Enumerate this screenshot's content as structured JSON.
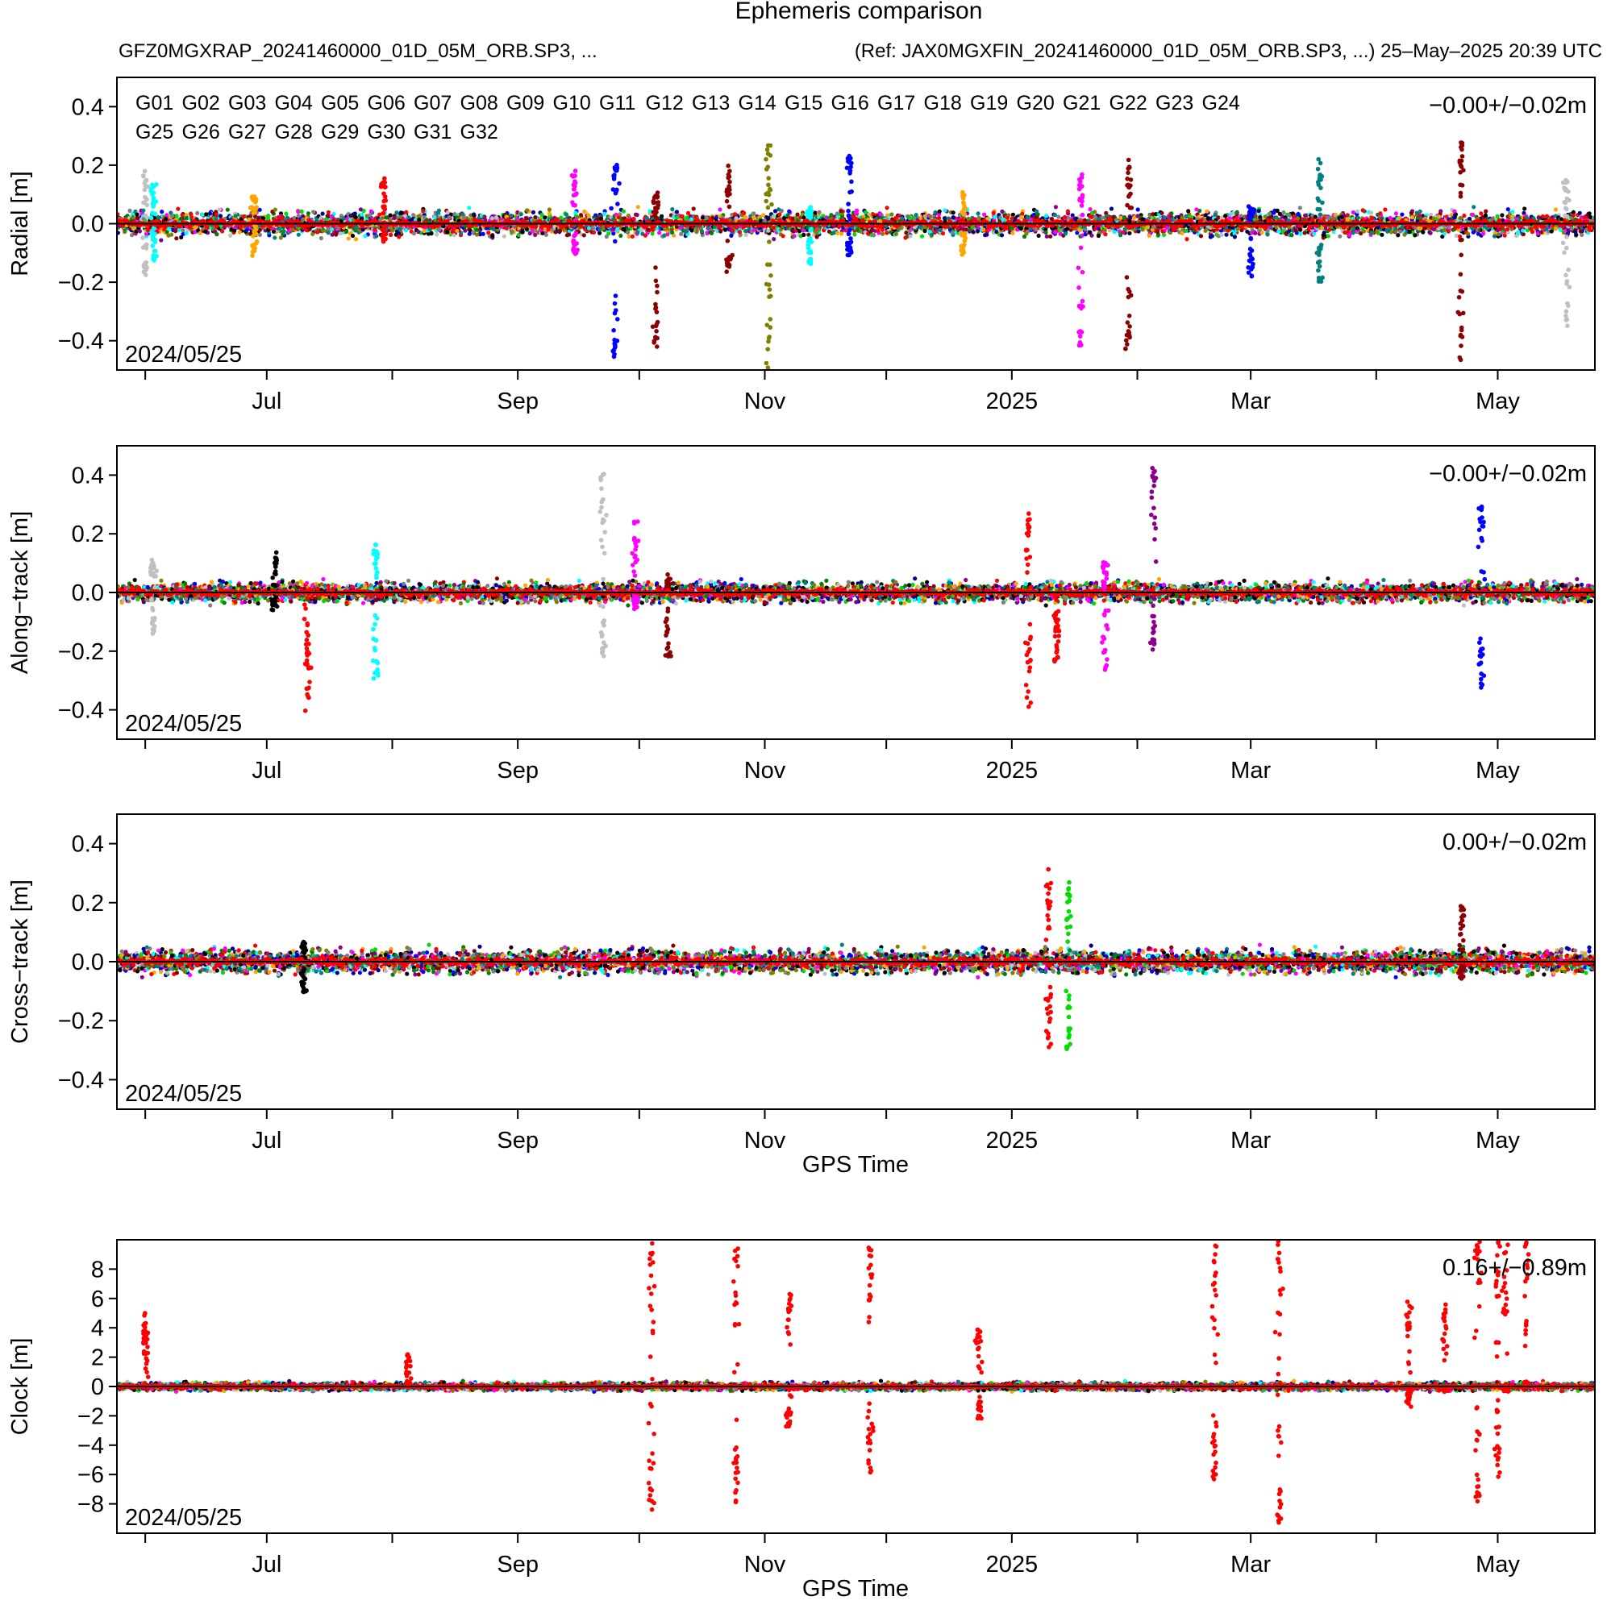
{
  "header": {
    "title": "Ephemeris comparison",
    "left": "GFZ0MGXRAP_20241460000_01D_05M_ORB.SP3, ...",
    "right": "(Ref: JAX0MGXFIN_20241460000_01D_05M_ORB.SP3, ...)  25–May–2025 20:39 UTC"
  },
  "legend": {
    "satellites": [
      {
        "name": "G01",
        "color": "#000000"
      },
      {
        "name": "G02",
        "color": "#ff0000"
      },
      {
        "name": "G03",
        "color": "#0000ff"
      },
      {
        "name": "G04",
        "color": "#00dd00"
      },
      {
        "name": "G05",
        "color": "#00008b"
      },
      {
        "name": "G06",
        "color": "#8b008b"
      },
      {
        "name": "G07",
        "color": "#007f00"
      },
      {
        "name": "G08",
        "color": "#00ffff"
      },
      {
        "name": "G09",
        "color": "#ff00ff"
      },
      {
        "name": "G10",
        "color": "#c0c0c0"
      },
      {
        "name": "G11",
        "color": "#8b0000"
      },
      {
        "name": "G12",
        "color": "#ffa500"
      },
      {
        "name": "G13",
        "color": "#808080"
      },
      {
        "name": "G14",
        "color": "#808000"
      },
      {
        "name": "G15",
        "color": "#008080"
      },
      {
        "name": "G16",
        "color": "#000000"
      },
      {
        "name": "G17",
        "color": "#ff0000"
      },
      {
        "name": "G18",
        "color": "#0000ff"
      },
      {
        "name": "G19",
        "color": "#00dd00"
      },
      {
        "name": "G20",
        "color": "#00008b"
      },
      {
        "name": "G21",
        "color": "#8b008b"
      },
      {
        "name": "G22",
        "color": "#007f00"
      },
      {
        "name": "G23",
        "color": "#00ffff"
      },
      {
        "name": "G24",
        "color": "#ff00ff"
      },
      {
        "name": "G25",
        "color": "#c0c0c0"
      },
      {
        "name": "G26",
        "color": "#8b0000"
      },
      {
        "name": "G27",
        "color": "#ffa500"
      },
      {
        "name": "G28",
        "color": "#808080"
      },
      {
        "name": "G29",
        "color": "#808000"
      },
      {
        "name": "G30",
        "color": "#008080"
      },
      {
        "name": "G31",
        "color": "#000000"
      },
      {
        "name": "G32",
        "color": "#ff0000"
      }
    ]
  },
  "chart_data": [
    {
      "type": "scatter",
      "ylabel": "Radial [m]",
      "xlabel": "",
      "stat": "−0.00+/−0.02m",
      "start_label": "2024/05/25",
      "x_ticklabels": [
        "Jul",
        "Sep",
        "Nov",
        "2025",
        "Mar",
        "May"
      ],
      "y_ticklabels": [
        "−0.4",
        "−0.2",
        "0.0",
        "0.2",
        "0.4"
      ],
      "ylim": [
        -0.5,
        0.5
      ],
      "xlim": [
        "2024-05-25",
        "2025-05-25"
      ],
      "noise": 0.03,
      "series": [
        {
          "sat": "G10",
          "date": "2024-06-01",
          "values": [
            0.17,
            -0.16
          ]
        },
        {
          "sat": "G08",
          "date": "2024-06-03",
          "values": [
            -0.12,
            0.14
          ]
        },
        {
          "sat": "G12",
          "date": "2024-06-28",
          "values": [
            0.09,
            -0.1
          ]
        },
        {
          "sat": "G02",
          "date": "2024-07-30",
          "values": [
            0.16,
            -0.05
          ]
        },
        {
          "sat": "G09",
          "date": "2024-09-15",
          "values": [
            0.18,
            -0.1
          ]
        },
        {
          "sat": "G03",
          "date": "2024-09-25",
          "values": [
            0.2,
            -0.47
          ]
        },
        {
          "sat": "G11",
          "date": "2024-10-05",
          "values": [
            0.1,
            -0.42
          ]
        },
        {
          "sat": "G11",
          "date": "2024-10-23",
          "values": [
            0.19,
            -0.15
          ]
        },
        {
          "sat": "G14",
          "date": "2024-11-02",
          "values": [
            0.27,
            -0.5
          ]
        },
        {
          "sat": "G08",
          "date": "2024-11-12",
          "values": [
            -0.13,
            0.05
          ]
        },
        {
          "sat": "G18",
          "date": "2024-11-22",
          "values": [
            0.24,
            -0.1
          ]
        },
        {
          "sat": "G12",
          "date": "2024-12-20",
          "values": [
            0.1,
            -0.1
          ]
        },
        {
          "sat": "G09",
          "date": "2025-01-18",
          "values": [
            0.17,
            -0.44
          ]
        },
        {
          "sat": "G11",
          "date": "2025-01-30",
          "values": [
            0.22,
            -0.44
          ]
        },
        {
          "sat": "G03",
          "date": "2025-03-01",
          "values": [
            -0.17,
            0.05
          ]
        },
        {
          "sat": "G15",
          "date": "2025-03-18",
          "values": [
            0.23,
            -0.2
          ]
        },
        {
          "sat": "G11",
          "date": "2025-04-22",
          "values": [
            0.29,
            -0.5
          ]
        },
        {
          "sat": "G10",
          "date": "2025-05-18",
          "values": [
            0.15,
            -0.38
          ]
        }
      ]
    },
    {
      "type": "scatter",
      "ylabel": "Along−track [m]",
      "xlabel": "",
      "stat": "−0.00+/−0.02m",
      "start_label": "2024/05/25",
      "x_ticklabels": [
        "Jul",
        "Sep",
        "Nov",
        "2025",
        "Mar",
        "May"
      ],
      "y_ticklabels": [
        "−0.4",
        "−0.2",
        "0.0",
        "0.2",
        "0.4"
      ],
      "ylim": [
        -0.5,
        0.5
      ],
      "xlim": [
        "2024-05-25",
        "2025-05-25"
      ],
      "noise": 0.025,
      "series": [
        {
          "sat": "G10",
          "date": "2024-06-03",
          "values": [
            0.1,
            -0.13
          ]
        },
        {
          "sat": "G01",
          "date": "2024-07-03",
          "values": [
            0.13,
            -0.06
          ]
        },
        {
          "sat": "G02",
          "date": "2024-07-11",
          "values": [
            -0.4,
            -0.25
          ]
        },
        {
          "sat": "G08",
          "date": "2024-07-28",
          "values": [
            0.16,
            -0.3
          ]
        },
        {
          "sat": "G10",
          "date": "2024-09-22",
          "values": [
            0.41,
            -0.21
          ]
        },
        {
          "sat": "G09",
          "date": "2024-09-30",
          "values": [
            0.25,
            -0.05
          ]
        },
        {
          "sat": "G11",
          "date": "2024-10-08",
          "values": [
            -0.22,
            0.05
          ]
        },
        {
          "sat": "G02",
          "date": "2025-01-05",
          "values": [
            -0.4,
            0.29
          ]
        },
        {
          "sat": "G02",
          "date": "2025-01-12",
          "values": [
            -0.23,
            -0.15
          ]
        },
        {
          "sat": "G09",
          "date": "2025-01-24",
          "values": [
            -0.26,
            0.1
          ]
        },
        {
          "sat": "G21",
          "date": "2025-02-05",
          "values": [
            0.43,
            -0.19
          ]
        },
        {
          "sat": "G03",
          "date": "2025-04-27",
          "values": [
            0.29,
            -0.32
          ]
        }
      ]
    },
    {
      "type": "scatter",
      "ylabel": "Cross−track [m]",
      "xlabel": "GPS Time",
      "stat": "0.00+/−0.02m",
      "start_label": "2024/05/25",
      "x_ticklabels": [
        "Jul",
        "Sep",
        "Nov",
        "2025",
        "Mar",
        "May"
      ],
      "y_ticklabels": [
        "−0.4",
        "−0.2",
        "0.0",
        "0.2",
        "0.4"
      ],
      "ylim": [
        -0.5,
        0.5
      ],
      "xlim": [
        "2024-05-25",
        "2025-05-25"
      ],
      "noise": 0.03,
      "series": [
        {
          "sat": "G31",
          "date": "2024-07-10",
          "values": [
            0.08,
            -0.1
          ]
        },
        {
          "sat": "G02",
          "date": "2025-01-10",
          "values": [
            0.3,
            -0.3
          ]
        },
        {
          "sat": "G04",
          "date": "2025-01-15",
          "values": [
            0.29,
            -0.29
          ]
        },
        {
          "sat": "G11",
          "date": "2025-04-22",
          "values": [
            0.19,
            -0.05
          ]
        }
      ]
    },
    {
      "type": "scatter",
      "ylabel": "Clock [m]",
      "xlabel": "GPS Time",
      "stat": "0.16+/−0.89m",
      "start_label": "2024/05/25",
      "x_ticklabels": [
        "Jul",
        "Sep",
        "Nov",
        "2025",
        "Mar",
        "May"
      ],
      "y_ticklabels": [
        "−8",
        "−6",
        "−4",
        "−2",
        "0",
        "2",
        "4",
        "6",
        "8"
      ],
      "ylim": [
        -10,
        10
      ],
      "xlim": [
        "2024-05-25",
        "2025-05-25"
      ],
      "noise": 0.2,
      "series": [
        {
          "sat": "G02",
          "date": "2024-06-01",
          "values": [
            5.0,
            3.5
          ]
        },
        {
          "sat": "G02",
          "date": "2024-08-05",
          "values": [
            2.2,
            0.3
          ]
        },
        {
          "sat": "G02",
          "date": "2024-10-04",
          "values": [
            10,
            -8.5
          ]
        },
        {
          "sat": "G02",
          "date": "2024-10-25",
          "values": [
            10,
            -8.5
          ]
        },
        {
          "sat": "G02",
          "date": "2024-11-07",
          "values": [
            6.5,
            -2.7
          ]
        },
        {
          "sat": "G02",
          "date": "2024-11-27",
          "values": [
            9.5,
            -5.8
          ]
        },
        {
          "sat": "G02",
          "date": "2024-12-24",
          "values": [
            3.8,
            -2.3
          ]
        },
        {
          "sat": "G02",
          "date": "2025-02-20",
          "values": [
            10,
            -7.0
          ]
        },
        {
          "sat": "G02",
          "date": "2025-03-08",
          "values": [
            10,
            -9.3
          ]
        },
        {
          "sat": "G02",
          "date": "2025-04-09",
          "values": [
            6.5,
            -1.4
          ]
        },
        {
          "sat": "G02",
          "date": "2025-04-18",
          "values": [
            5.6,
            -0.3
          ]
        },
        {
          "sat": "G02",
          "date": "2025-04-26",
          "values": [
            10,
            -8.0
          ]
        },
        {
          "sat": "G02",
          "date": "2025-05-01",
          "values": [
            10,
            -6.3
          ]
        },
        {
          "sat": "G02",
          "date": "2025-05-03",
          "values": [
            10,
            -0.3
          ]
        },
        {
          "sat": "G02",
          "date": "2025-05-08",
          "values": [
            10,
            0.3
          ]
        }
      ]
    }
  ]
}
